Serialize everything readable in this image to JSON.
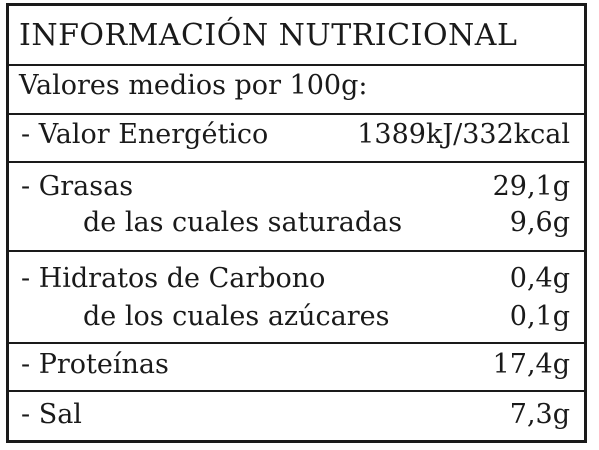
{
  "label": {
    "title": "INFORMACIÓN NUTRICIONAL",
    "subtitle": "Valores medios por 100g:",
    "rows": [
      {
        "name": "- Valor Energético",
        "value": "1389kJ/332kcal"
      },
      {
        "name": "- Grasas",
        "value": "29,1g"
      },
      {
        "name": "de las cuales saturadas",
        "value": "9,6g"
      },
      {
        "name": "- Hidratos de Carbono",
        "value": "0,4g"
      },
      {
        "name": "de los cuales azúcares",
        "value": "0,1g"
      },
      {
        "name": "- Proteínas",
        "value": "17,4g"
      },
      {
        "name": "- Sal",
        "value": "7,3g"
      }
    ]
  },
  "colors": {
    "ink": "#1a1a1a",
    "background": "#ffffff"
  }
}
